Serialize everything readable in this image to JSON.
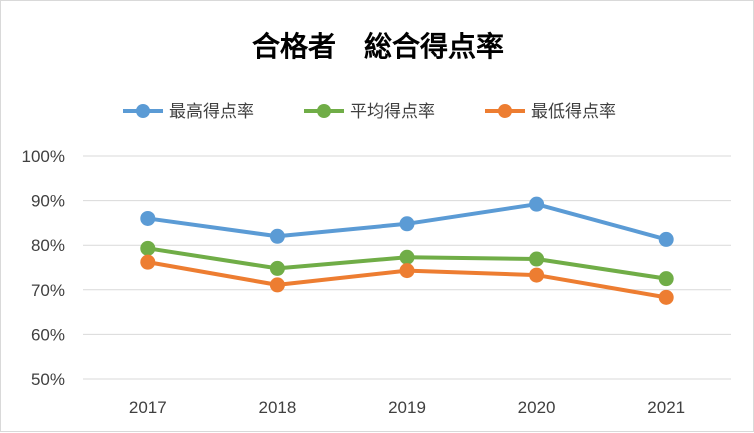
{
  "chart_data": {
    "type": "line",
    "title": "合格者　総合得点率",
    "categories": [
      "2017",
      "2018",
      "2019",
      "2020",
      "2021"
    ],
    "ylim": [
      0.5,
      1.0
    ],
    "yticks": [
      "100%",
      "90%",
      "80%",
      "70%",
      "60%",
      "50%"
    ],
    "ytick_values": [
      1.0,
      0.9,
      0.8,
      0.7,
      0.6,
      0.5
    ],
    "grid": true,
    "legend_position": "top",
    "series": [
      {
        "name": "最高得点率",
        "color": "#5b9bd5",
        "values": [
          0.86,
          0.82,
          0.848,
          0.892,
          0.813
        ]
      },
      {
        "name": "平均得点率",
        "color": "#70ad47",
        "values": [
          0.793,
          0.748,
          0.773,
          0.769,
          0.725
        ]
      },
      {
        "name": "最低得点率",
        "color": "#ed7d31",
        "values": [
          0.762,
          0.711,
          0.743,
          0.733,
          0.683
        ]
      }
    ]
  }
}
